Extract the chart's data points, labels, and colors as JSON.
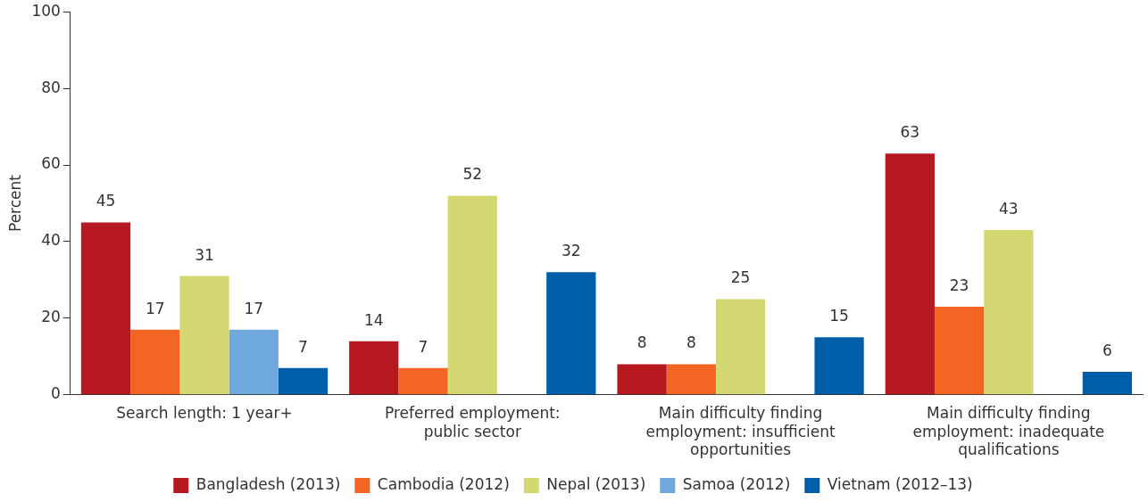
{
  "chart_data": {
    "type": "bar",
    "ylabel": "Percent",
    "categories": [
      "Search length: 1 year+",
      "Preferred employment: public sector",
      "Main difficulty finding employment: insufficient opportunities",
      "Main difficulty finding employment: inadequate qualifications"
    ],
    "series": [
      {
        "name": "Bangladesh (2013)",
        "color": "#b5191f",
        "values": [
          45,
          14,
          8,
          63
        ]
      },
      {
        "name": "Cambodia (2012)",
        "color": "#f26522",
        "values": [
          17,
          7,
          8,
          23
        ]
      },
      {
        "name": "Nepal (2013)",
        "color": "#d4d873",
        "values": [
          31,
          52,
          25,
          43
        ]
      },
      {
        "name": "Samoa (2012)",
        "color": "#6fa8dc",
        "values": [
          17,
          null,
          null,
          null
        ]
      },
      {
        "name": "Vietnam (2012–13)",
        "color": "#005ea8",
        "values": [
          7,
          32,
          15,
          6
        ]
      }
    ],
    "ylim": [
      0,
      100
    ],
    "yticks": [
      0,
      20,
      40,
      60,
      80,
      100
    ],
    "grid": false,
    "legend": "bottom",
    "data_labels": true
  }
}
